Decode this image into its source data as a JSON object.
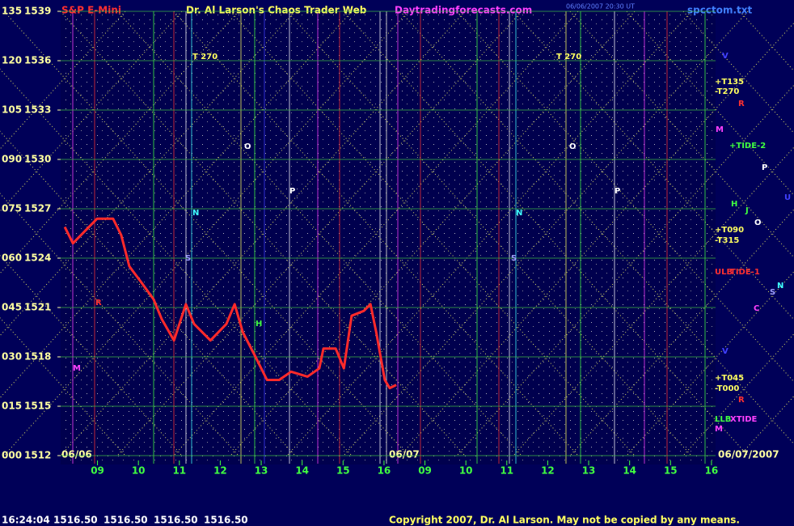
{
  "chart_data": {
    "type": "line",
    "title": "S&P E-Mini",
    "subtitle": "Dr. Al Larson's Chaos Trader Web",
    "site": "Daytradingforecasts.com",
    "file": "spcctom.txt",
    "timestamp": "06/06/2007 20:30 UT",
    "color": "#ff2a2a",
    "x": [
      8.2,
      8.4,
      8.99,
      9.38,
      9.58,
      9.78,
      10.08,
      10.37,
      10.57,
      10.87,
      11.16,
      11.36,
      11.76,
      12.15,
      12.35,
      12.55,
      12.84,
      13.14,
      13.44,
      13.73,
      14.13,
      14.42,
      14.52,
      14.82,
      15.02,
      15.21,
      15.51,
      15.67,
      15.81,
      15.91,
      16.02,
      16.14,
      16.3
    ],
    "values": [
      1525.9,
      1524.9,
      1526.4,
      1526.4,
      1525.4,
      1523.5,
      1522.5,
      1521.5,
      1520.3,
      1519.0,
      1521.2,
      1520.0,
      1519.0,
      1520.0,
      1521.2,
      1519.5,
      1518.1,
      1516.6,
      1516.6,
      1517.1,
      1516.8,
      1517.3,
      1518.5,
      1518.5,
      1517.3,
      1520.5,
      1520.8,
      1521.2,
      1519.5,
      1518.1,
      1516.6,
      1516.1,
      1516.3
    ],
    "xlim": [
      8.1,
      24.1
    ],
    "xticks": [
      {
        "value": 9,
        "label": "09"
      },
      10,
      11,
      12,
      13,
      14,
      15,
      16,
      {
        "value": 17,
        "label": "09"
      },
      {
        "value": 18,
        "label": "10"
      },
      {
        "value": 19,
        "label": "11"
      },
      {
        "value": 20,
        "label": "12"
      },
      {
        "value": 21,
        "label": "13"
      },
      {
        "value": 22,
        "label": "14"
      },
      {
        "value": 23,
        "label": "15"
      },
      {
        "value": 24,
        "label": "16"
      }
    ],
    "ylim": [
      1512,
      1539
    ],
    "yticks": [
      1512,
      1515,
      1518,
      1521,
      1524,
      1527,
      1530,
      1533,
      1536,
      1539
    ],
    "y2lim": [
      0,
      135
    ],
    "y2ticks": [
      {
        "value": 0,
        "label": "000"
      },
      {
        "value": 15,
        "label": "015"
      },
      {
        "value": 30,
        "label": "030"
      },
      {
        "value": 45,
        "label": "045"
      },
      {
        "value": 60,
        "label": "060"
      },
      {
        "value": 75,
        "label": "075"
      },
      {
        "value": 90,
        "label": "090"
      },
      105,
      120,
      135
    ],
    "date_labels": [
      "06/06",
      "06/07",
      "06/07/2007"
    ],
    "annotations": [
      "T 270",
      "T 270",
      "+T135",
      "-T270",
      "R",
      "M",
      "+TIDE-2",
      "P",
      "H",
      "J",
      "O",
      "U",
      "+T090",
      "-T315",
      "ULB",
      "TIDE-1",
      "N",
      "S",
      "C",
      "V",
      "+T045",
      "-T000",
      "R",
      "LLB",
      "XTIDE",
      "M",
      "O",
      "P",
      "N",
      "S",
      "H",
      "R",
      "M",
      "O",
      "P",
      "N",
      "S",
      "V"
    ],
    "status": [
      "16:24:04",
      "1516.50",
      "1516.50",
      "1516.50",
      "1516.50"
    ],
    "copyright": "Copyright 2007, Dr. Al Larson. May not be copied by any means."
  }
}
